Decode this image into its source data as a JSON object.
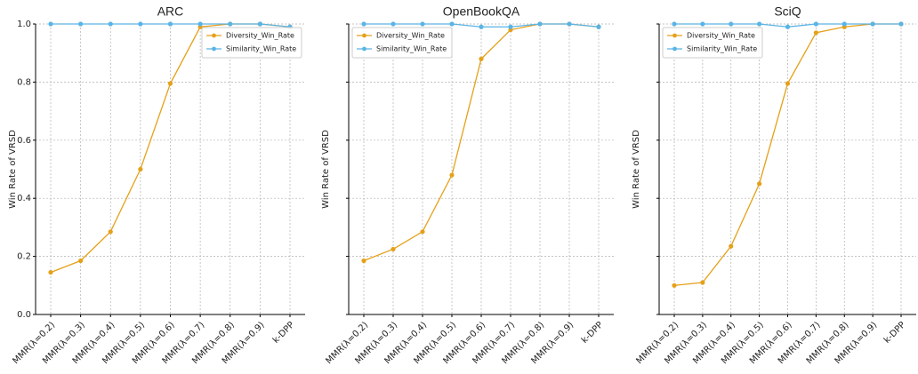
{
  "chart_data": [
    {
      "type": "line",
      "title": "ARC",
      "ylabel": "Win Rate of VRSD",
      "categories": [
        "MMR(λ=0.2)",
        "MMR(λ=0.3)",
        "MMR(λ=0.4)",
        "MMR(λ=0.5)",
        "MMR(λ=0.6)",
        "MMR(λ=0.7)",
        "MMR(λ=0.8)",
        "MMR(λ=0.9)",
        "k-DPP"
      ],
      "series": [
        {
          "name": "Diversity_Win_Rate",
          "color": "#e5a11a",
          "values": [
            0.145,
            0.185,
            0.285,
            0.5,
            0.795,
            0.99,
            1.0,
            1.0,
            0.99
          ]
        },
        {
          "name": "Similarity_Win_Rate",
          "color": "#5ab4e5",
          "values": [
            1.0,
            1.0,
            1.0,
            1.0,
            1.0,
            1.0,
            1.0,
            1.0,
            0.99
          ]
        }
      ],
      "ylim": [
        0,
        1
      ],
      "yticks": [
        {
          "value": 0,
          "label": "0.0"
        },
        0.2,
        0.4,
        0.6,
        0.8,
        {
          "value": 1,
          "label": "1.0"
        }
      ],
      "grid": true,
      "legend": "upper right"
    },
    {
      "type": "line",
      "title": "OpenBookQA",
      "ylabel": "Win Rate of VRSD",
      "categories": [
        "MMR(λ=0.2)",
        "MMR(λ=0.3)",
        "MMR(λ=0.4)",
        "MMR(λ=0.5)",
        "MMR(λ=0.6)",
        "MMR(λ=0.7)",
        "MMR(λ=0.8)",
        "MMR(λ=0.9)",
        "k-DPP"
      ],
      "series": [
        {
          "name": "Diversity_Win_Rate",
          "color": "#e5a11a",
          "values": [
            0.185,
            0.225,
            0.285,
            0.48,
            0.88,
            0.98,
            1.0,
            1.0,
            0.99
          ]
        },
        {
          "name": "Similarity_Win_Rate",
          "color": "#5ab4e5",
          "values": [
            1.0,
            1.0,
            1.0,
            1.0,
            0.99,
            0.99,
            1.0,
            1.0,
            0.99
          ]
        }
      ],
      "ylim": [
        0,
        1
      ],
      "yticks": [
        0,
        0.2,
        0.4,
        0.6,
        0.8,
        1
      ],
      "grid": true,
      "legend": "upper left"
    },
    {
      "type": "line",
      "title": "SciQ",
      "ylabel": "Win Rate of VRSD",
      "categories": [
        "MMR(λ=0.2)",
        "MMR(λ=0.3)",
        "MMR(λ=0.4)",
        "MMR(λ=0.5)",
        "MMR(λ=0.6)",
        "MMR(λ=0.7)",
        "MMR(λ=0.8)",
        "MMR(λ=0.9)",
        "k-DPP"
      ],
      "series": [
        {
          "name": "Diversity_Win_Rate",
          "color": "#e5a11a",
          "values": [
            0.1,
            0.11,
            0.235,
            0.45,
            0.795,
            0.97,
            0.99,
            1.0,
            1.0
          ]
        },
        {
          "name": "Similarity_Win_Rate",
          "color": "#5ab4e5",
          "values": [
            1.0,
            1.0,
            1.0,
            1.0,
            0.99,
            1.0,
            1.0,
            1.0,
            1.0
          ]
        }
      ],
      "ylim": [
        0,
        1
      ],
      "yticks": [
        0,
        0.2,
        0.4,
        0.6,
        0.8,
        1
      ],
      "grid": true,
      "legend": "upper left"
    }
  ]
}
